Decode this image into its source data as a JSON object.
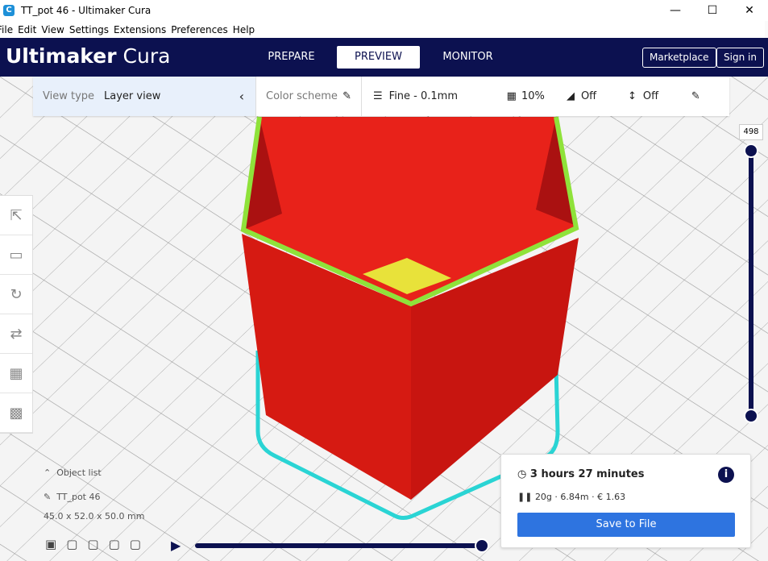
{
  "window": {
    "title": "TT_pot 46 - Ultimaker Cura",
    "app_icon": "cura-icon"
  },
  "menu": [
    "File",
    "Edit",
    "View",
    "Settings",
    "Extensions",
    "Preferences",
    "Help"
  ],
  "header": {
    "logo_bold": "Ultimaker",
    "logo_light": "Cura",
    "tabs": [
      "PREPARE",
      "PREVIEW",
      "MONITOR"
    ],
    "active_tab": "PREVIEW",
    "marketplace": "Marketplace",
    "signin": "Sign in",
    "color": "#0c1150"
  },
  "toolbar": {
    "view_type_label": "View type",
    "view_type_value": "Layer view",
    "color_scheme": "Color scheme",
    "profile": "Fine - 0.1mm",
    "infill": "10%",
    "support": "Off",
    "adhesion": "Off"
  },
  "layer_slider": {
    "value": "498"
  },
  "object": {
    "list_label": "Object list",
    "name": "TT_pot 46",
    "dims": "45.0 x 52.0 x 50.0 mm"
  },
  "print": {
    "time": "3 hours 27 minutes",
    "material": "20g · 6.84m · € 1.63",
    "save": "Save to File",
    "button_color": "#2e74e0"
  },
  "simulation": {
    "progress": 1.0
  }
}
